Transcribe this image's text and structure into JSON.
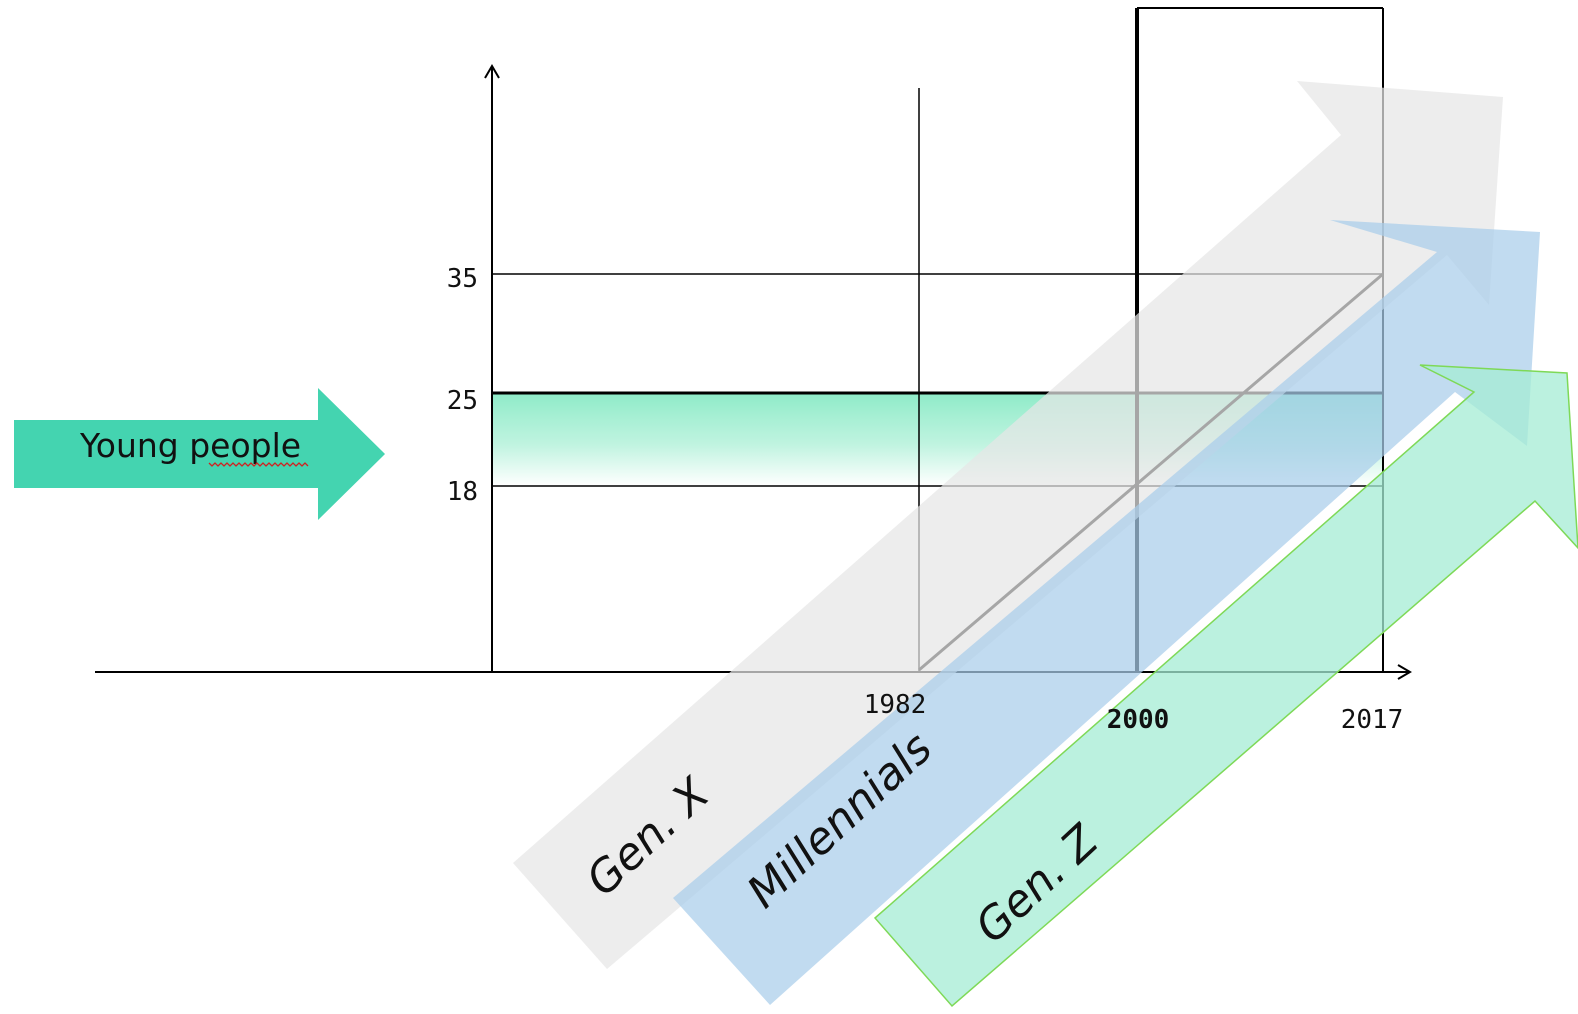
{
  "young_people": {
    "label": "Young people",
    "color": "#44d4b0"
  },
  "y_ticks": [
    {
      "value": 35,
      "label": "35"
    },
    {
      "value": 25,
      "label": "25"
    },
    {
      "value": 18,
      "label": "18"
    }
  ],
  "x_ticks": [
    {
      "year": 1982,
      "label": "1982",
      "bold": false
    },
    {
      "year": 2000,
      "label": "2000",
      "bold": true
    },
    {
      "year": 2017,
      "label": "2017",
      "bold": false
    }
  ],
  "age_band": {
    "from": 18,
    "to": 25,
    "color": "#8eebc8"
  },
  "cohort_line": {
    "start": {
      "year": 1982,
      "age": 0
    },
    "end": {
      "year": 2017,
      "age": 35
    }
  },
  "generations": [
    {
      "label": "Gen. X",
      "color": "#e6e6e6"
    },
    {
      "label": "Millennials",
      "color": "#a9cdea"
    },
    {
      "label": "Gen. Z",
      "color": "#a4ecd4",
      "stroke": "#7ed957"
    }
  ]
}
